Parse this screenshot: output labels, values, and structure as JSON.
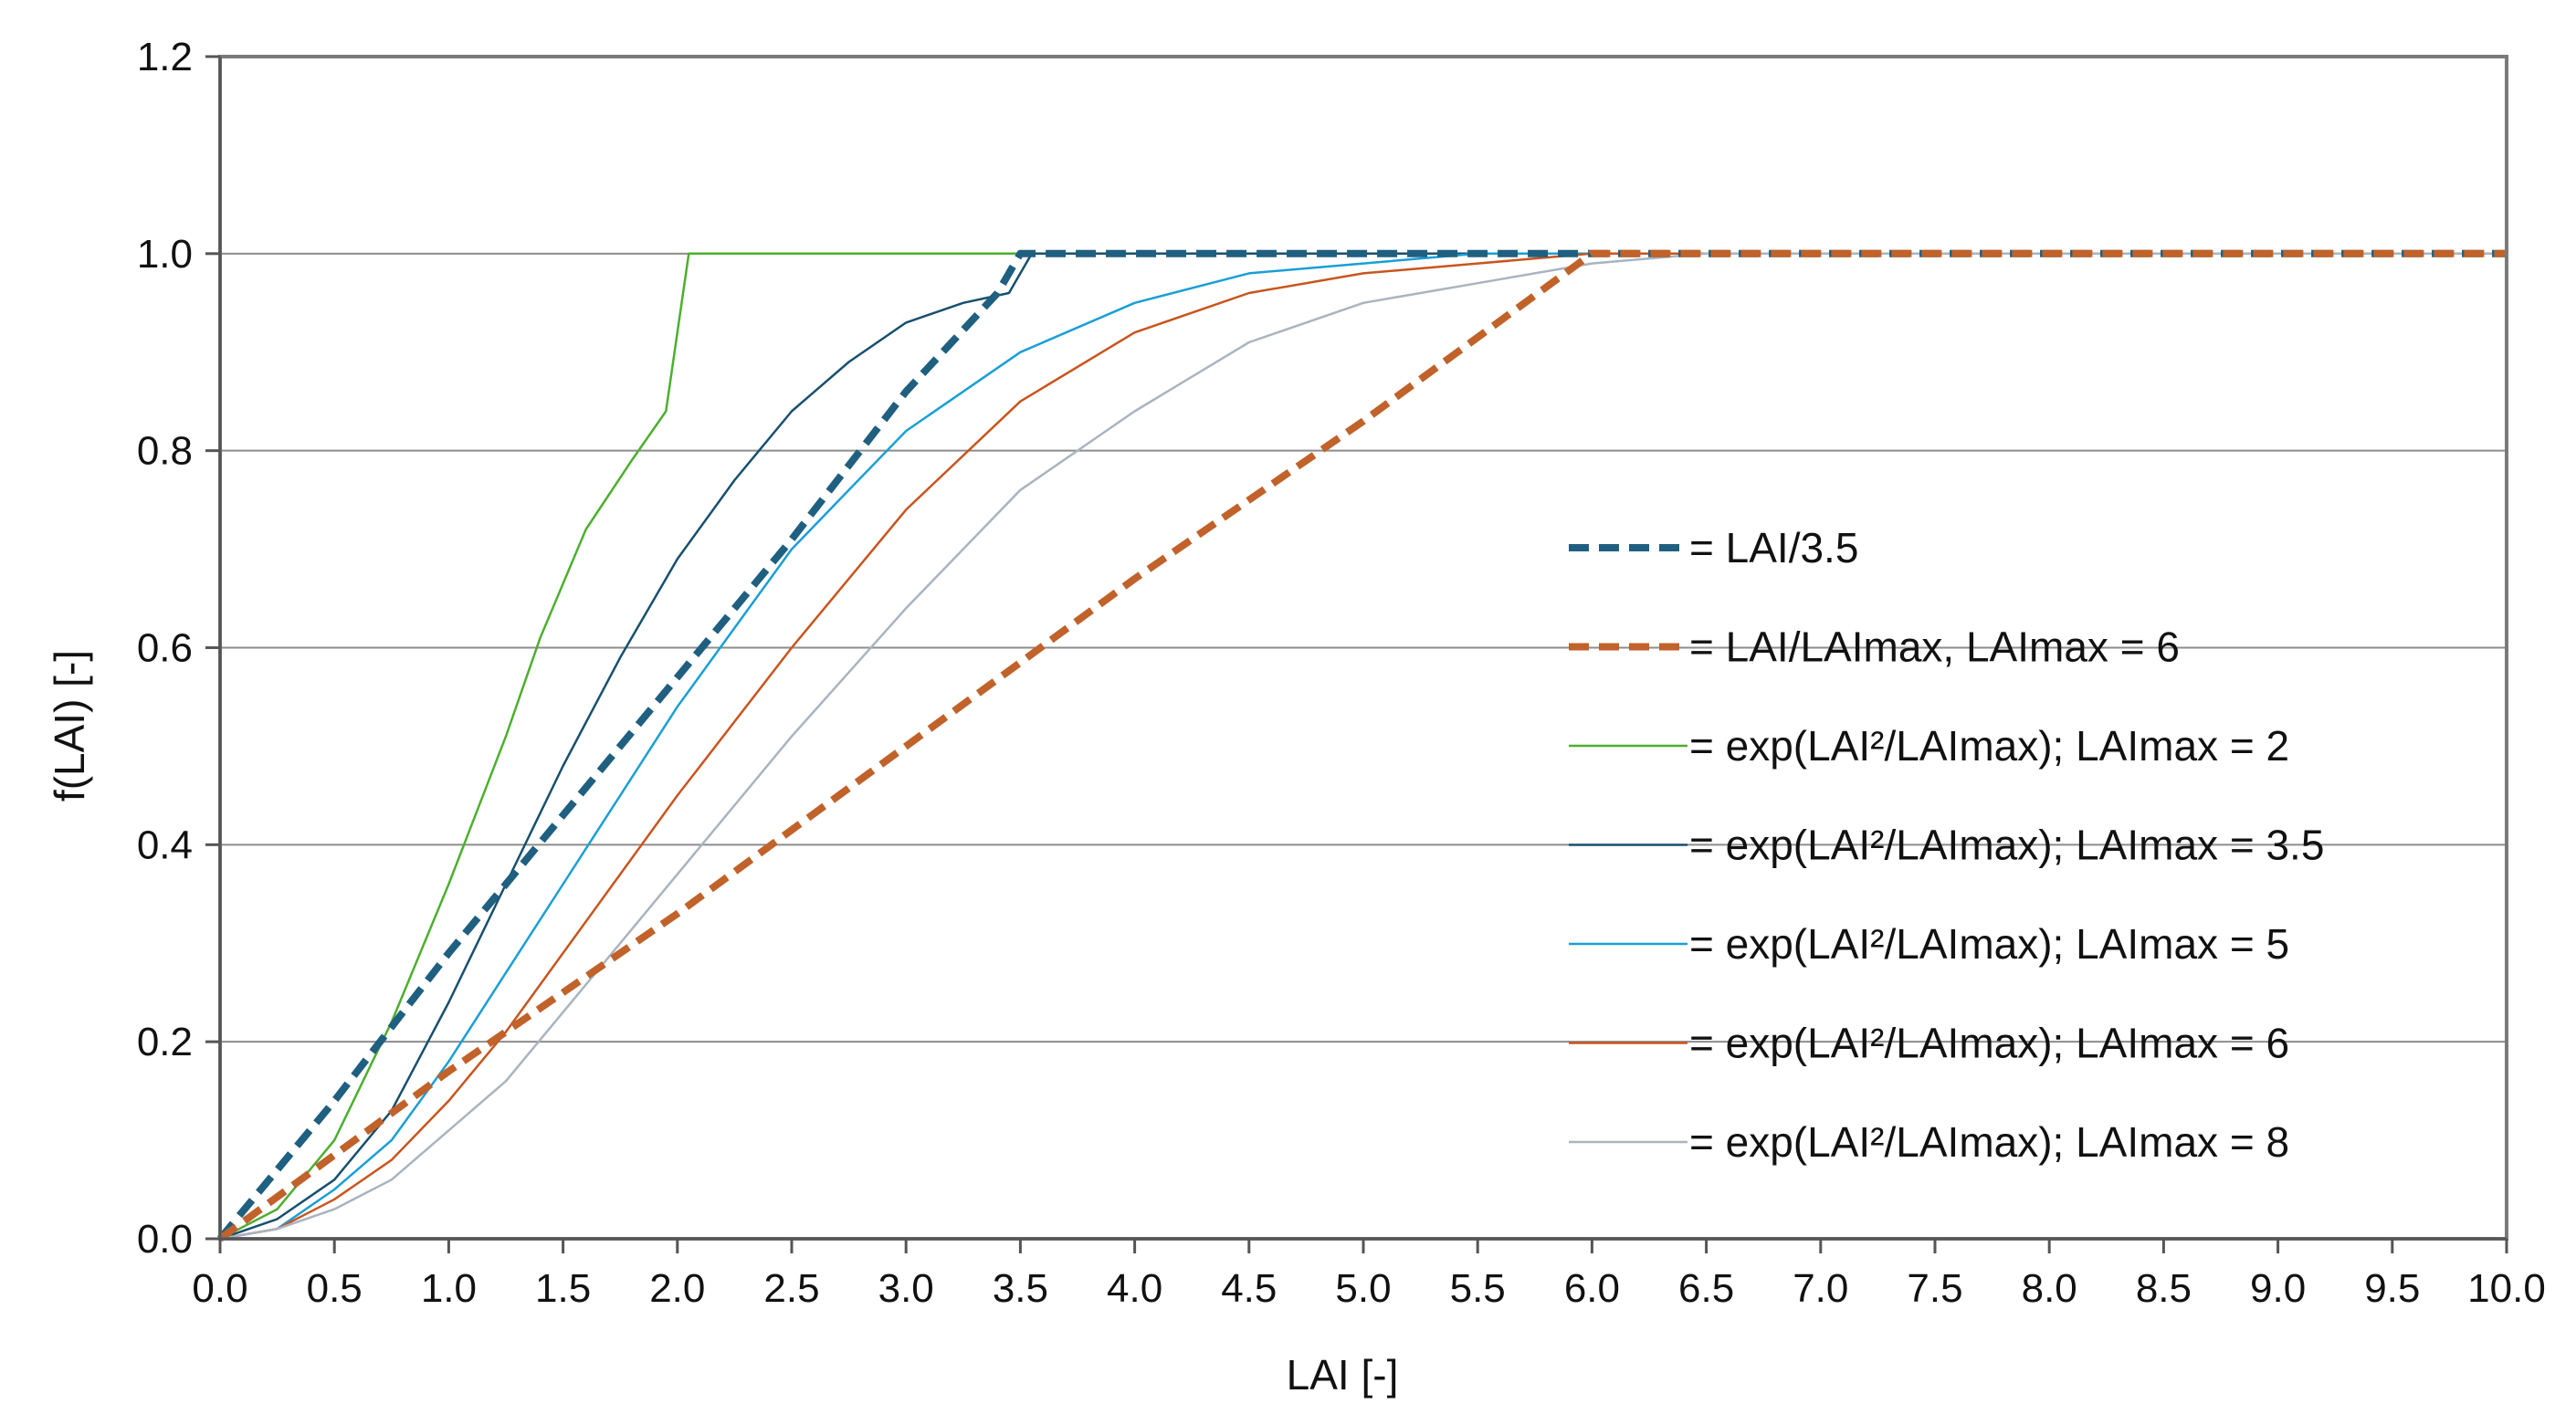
{
  "chart_data": {
    "type": "line",
    "title": "",
    "xlabel": "LAI [-]",
    "ylabel": "f(LAI)   [-]",
    "xlim": [
      0,
      10
    ],
    "ylim": [
      0,
      1.2
    ],
    "grid": "horizontal",
    "legend_position": "center-right",
    "x_ticks": [
      "0.0",
      "0.5",
      "1.0",
      "1.5",
      "2.0",
      "2.5",
      "3.0",
      "3.5",
      "4.0",
      "4.5",
      "5.0",
      "5.5",
      "6.0",
      "6.5",
      "7.0",
      "7.5",
      "8.0",
      "8.5",
      "9.0",
      "9.5",
      "10.0"
    ],
    "y_ticks": [
      "0.0",
      "0.2",
      "0.4",
      "0.6",
      "0.8",
      "1.0",
      "1.2"
    ],
    "series": [
      {
        "name": "= LAI/3.5",
        "color": "#1f5f80",
        "dashed": true,
        "bold": true,
        "x": [
          0,
          0.5,
          1.0,
          1.5,
          2.0,
          2.5,
          3.0,
          3.4,
          3.5,
          4.0,
          5.0,
          6.0,
          7.0,
          8.0,
          9.0,
          10.0
        ],
        "y": [
          0,
          0.14,
          0.29,
          0.43,
          0.57,
          0.71,
          0.86,
          0.96,
          1.0,
          1.0,
          1.0,
          1.0,
          1.0,
          1.0,
          1.0,
          1.0
        ]
      },
      {
        "name": "= LAI/LAImax, LAImax = 6",
        "color": "#c0622a",
        "dashed": true,
        "bold": true,
        "x": [
          0,
          1.0,
          2.0,
          3.0,
          4.0,
          5.0,
          6.0,
          7.0,
          8.0,
          9.0,
          10.0
        ],
        "y": [
          0,
          0.17,
          0.33,
          0.5,
          0.67,
          0.83,
          1.0,
          1.0,
          1.0,
          1.0,
          1.0
        ]
      },
      {
        "name": "= exp(LAI²/LAImax); LAImax = 2",
        "color": "#4caf2f",
        "dashed": false,
        "bold": false,
        "x": [
          0,
          0.25,
          0.5,
          0.75,
          1.0,
          1.25,
          1.4,
          1.6,
          1.8,
          1.95,
          2.05,
          2.5,
          3.0,
          3.5,
          4.0,
          5.0,
          6.0,
          7.0,
          8.0,
          9.0,
          10.0
        ],
        "y": [
          0,
          0.03,
          0.1,
          0.22,
          0.36,
          0.51,
          0.61,
          0.72,
          0.79,
          0.84,
          1.0,
          1.0,
          1.0,
          1.0,
          1.0,
          1.0,
          1.0,
          1.0,
          1.0,
          1.0,
          1.0
        ]
      },
      {
        "name": "= exp(LAI²/LAImax); LAImax = 3.5",
        "color": "#17506e",
        "dashed": false,
        "bold": false,
        "x": [
          0,
          0.25,
          0.5,
          0.75,
          1.0,
          1.25,
          1.5,
          1.75,
          2.0,
          2.25,
          2.5,
          2.75,
          3.0,
          3.25,
          3.45,
          3.55,
          4.0,
          5.0,
          6.0,
          7.0,
          8.0,
          9.0,
          10.0
        ],
        "y": [
          0,
          0.02,
          0.06,
          0.13,
          0.24,
          0.36,
          0.48,
          0.59,
          0.69,
          0.77,
          0.84,
          0.89,
          0.93,
          0.95,
          0.96,
          1.0,
          1.0,
          1.0,
          1.0,
          1.0,
          1.0,
          1.0,
          1.0
        ]
      },
      {
        "name": "= exp(LAI²/LAImax); LAImax = 5",
        "color": "#1a9fd6",
        "dashed": false,
        "bold": false,
        "x": [
          0,
          0.25,
          0.5,
          0.75,
          1.0,
          1.25,
          1.5,
          1.75,
          2.0,
          2.25,
          2.5,
          2.75,
          3.0,
          3.5,
          4.0,
          4.5,
          5.0,
          5.5,
          6.0,
          7.0,
          8.0,
          9.0,
          10.0
        ],
        "y": [
          0,
          0.01,
          0.05,
          0.1,
          0.18,
          0.27,
          0.36,
          0.45,
          0.54,
          0.62,
          0.7,
          0.76,
          0.82,
          0.9,
          0.95,
          0.98,
          0.99,
          1.0,
          1.0,
          1.0,
          1.0,
          1.0,
          1.0
        ]
      },
      {
        "name": "= exp(LAI²/LAImax); LAImax = 6",
        "color": "#c8551e",
        "dashed": false,
        "bold": false,
        "x": [
          0,
          0.25,
          0.5,
          0.75,
          1.0,
          1.25,
          1.5,
          2.0,
          2.5,
          3.0,
          3.5,
          4.0,
          4.5,
          5.0,
          5.5,
          6.0,
          6.5,
          7.0,
          8.0,
          9.0,
          10.0
        ],
        "y": [
          0,
          0.01,
          0.04,
          0.08,
          0.14,
          0.21,
          0.29,
          0.45,
          0.6,
          0.74,
          0.85,
          0.92,
          0.96,
          0.98,
          0.99,
          1.0,
          1.0,
          1.0,
          1.0,
          1.0,
          1.0
        ]
      },
      {
        "name": "= exp(LAI²/LAImax); LAImax = 8",
        "color": "#a9b4bf",
        "dashed": false,
        "bold": false,
        "x": [
          0,
          0.25,
          0.5,
          0.75,
          1.0,
          1.25,
          1.5,
          2.0,
          2.5,
          3.0,
          3.5,
          4.0,
          4.5,
          5.0,
          5.5,
          6.0,
          6.5,
          7.0,
          8.0,
          9.0,
          10.0
        ],
        "y": [
          0,
          0.01,
          0.03,
          0.06,
          0.11,
          0.16,
          0.23,
          0.37,
          0.51,
          0.64,
          0.76,
          0.84,
          0.91,
          0.95,
          0.97,
          0.99,
          1.0,
          1.0,
          1.0,
          1.0,
          1.0
        ]
      }
    ]
  }
}
